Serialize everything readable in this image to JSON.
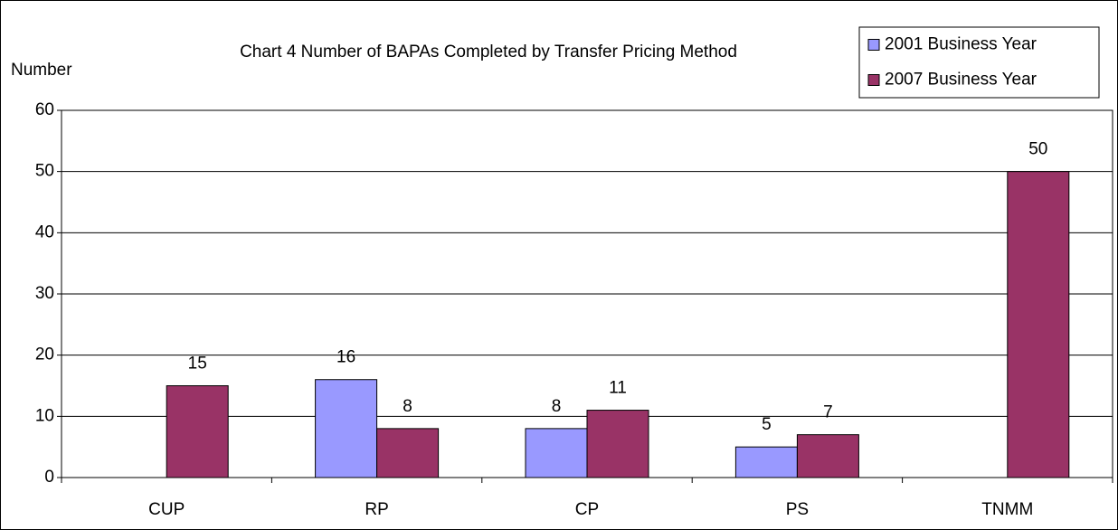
{
  "chart_data": {
    "type": "bar",
    "title": "Chart 4 Number of BAPAs Completed by Transfer Pricing Method",
    "y_label": "Number",
    "categories": [
      "CUP",
      "RP",
      "CP",
      "PS",
      "TNMM"
    ],
    "series": [
      {
        "name": "2001 Business Year",
        "color": "#9999ff",
        "values": [
          null,
          16,
          8,
          5,
          null
        ]
      },
      {
        "name": "2007 Business Year",
        "color": "#993366",
        "values": [
          15,
          8,
          11,
          7,
          50
        ]
      }
    ],
    "ylim": [
      0,
      60
    ],
    "yticks": [
      0,
      10,
      20,
      30,
      40,
      50,
      60
    ],
    "grid": true,
    "legend": "top-right"
  }
}
